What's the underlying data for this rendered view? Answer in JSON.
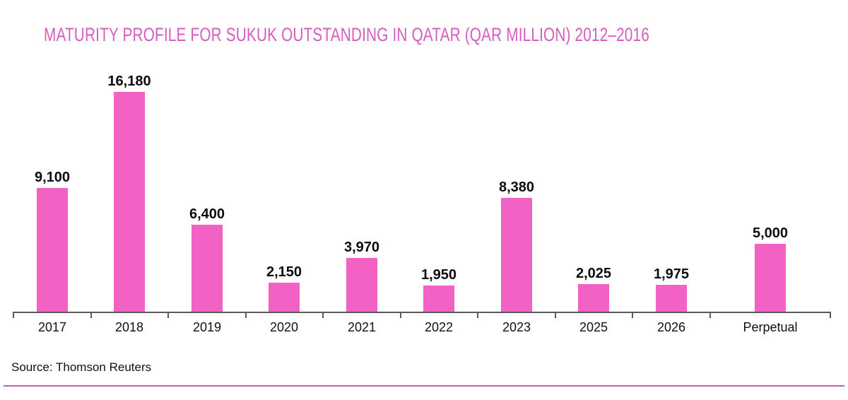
{
  "title": "MATURITY PROFILE FOR SUKUK OUTSTANDING IN QATAR (QAR MILLION) 2012–2016",
  "source": "Source: Thomson Reuters",
  "colors": {
    "bar": "#f262c5",
    "title": "#d65cbe",
    "axis": "#5a5a5a",
    "value_label": "#0d0d0d",
    "category_label": "#111111",
    "bottom_rule": "#ce58ba",
    "background": "#ffffff"
  },
  "chart_data": {
    "type": "bar",
    "title": "MATURITY PROFILE FOR SUKUK OUTSTANDING IN QATAR (QAR MILLION) 2012–2016",
    "categories": [
      "2017",
      "2018",
      "2019",
      "2020",
      "2021",
      "2022",
      "2023",
      "2025",
      "2026",
      "Perpetual"
    ],
    "values": [
      9100,
      16180,
      6400,
      2150,
      3970,
      1950,
      8380,
      2025,
      1975,
      5000
    ],
    "value_labels": [
      "9,100",
      "16,180",
      "6,400",
      "2,150",
      "3,970",
      "1,950",
      "8,380",
      "2,025",
      "1,975",
      "5,000"
    ],
    "xlabel": "",
    "ylabel": "",
    "ylim": [
      0,
      16180
    ],
    "grid": false,
    "legend": false,
    "bar_color": "#f262c5",
    "source": "Source: Thomson Reuters"
  }
}
